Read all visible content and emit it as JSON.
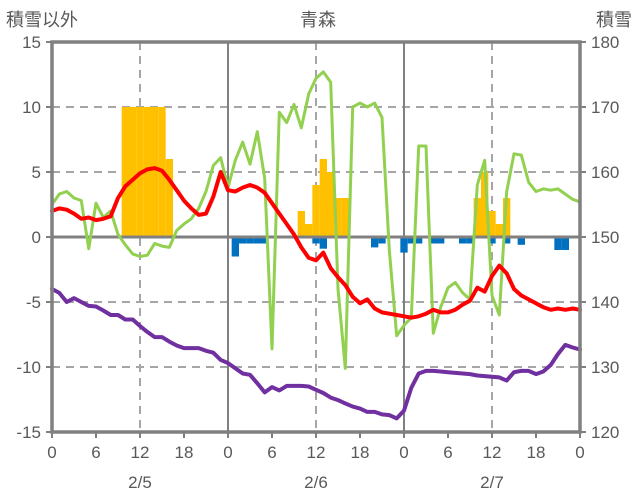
{
  "page": {
    "title_left": "積雪以外",
    "title_center": "青森",
    "title_right": "積雪"
  },
  "chart_data": {
    "type": "combo-bar-line",
    "x_unit": "hour",
    "x_range": [
      0,
      72
    ],
    "x_ticks": {
      "hours": [
        0,
        6,
        12,
        18,
        24,
        30,
        36,
        42,
        48,
        54,
        60,
        66,
        72
      ],
      "labels": [
        "0",
        "6",
        "12",
        "18",
        "0",
        "6",
        "12",
        "18",
        "0",
        "6",
        "12",
        "18",
        "0"
      ]
    },
    "date_labels": [
      {
        "hour": 12,
        "label": "2/5"
      },
      {
        "hour": 36,
        "label": "2/6"
      },
      {
        "hour": 60,
        "label": "2/7"
      }
    ],
    "left_axis": {
      "title": "積雪以外",
      "min": -15,
      "max": 15,
      "ticks": [
        15,
        10,
        5,
        0,
        -5,
        -10,
        -15
      ],
      "tick_labels": [
        "15",
        "10",
        "5",
        "0",
        "-5",
        "-10",
        "-15"
      ]
    },
    "right_axis": {
      "title": "積雪",
      "min": 120,
      "max": 180,
      "ticks": [
        180,
        170,
        160,
        150,
        140,
        130,
        120
      ],
      "tick_labels": [
        "180",
        "170",
        "160",
        "150",
        "140",
        "130",
        "120"
      ]
    },
    "gridlines": {
      "dashed_left_values": [
        10,
        5,
        -5,
        -10
      ],
      "zero_line_value": 0,
      "dashed_vertical_hours": [
        12,
        36,
        60
      ],
      "solid_vertical_hours": [
        24,
        48
      ]
    },
    "colors": {
      "grid_dashed": "#A6A6A6",
      "frame": "#808080",
      "text": "#595959",
      "orange_bar": "#FFC000",
      "blue_bar": "#0070C0",
      "red_line": "#FF0000",
      "green_line": "#92D050",
      "purple_line": "#7030A0"
    },
    "series": [
      {
        "name": "orange_bars",
        "type": "bar",
        "axis": "left",
        "color": "#FFC000",
        "points": [
          [
            10,
            10
          ],
          [
            11,
            10
          ],
          [
            12,
            10
          ],
          [
            13,
            10
          ],
          [
            14,
            10
          ],
          [
            15,
            10
          ],
          [
            16,
            6
          ],
          [
            34,
            2
          ],
          [
            35,
            1
          ],
          [
            36,
            4
          ],
          [
            37,
            6
          ],
          [
            38,
            5
          ],
          [
            39,
            3
          ],
          [
            40,
            3
          ],
          [
            58,
            3
          ],
          [
            59,
            5
          ],
          [
            60,
            2
          ],
          [
            61,
            1
          ],
          [
            62,
            3
          ]
        ]
      },
      {
        "name": "blue_bars",
        "type": "bar",
        "axis": "left",
        "color": "#0070C0",
        "points": [
          [
            25,
            -1.5
          ],
          [
            26,
            -0.5
          ],
          [
            27,
            -0.5
          ],
          [
            28,
            -0.5
          ],
          [
            29,
            -0.5
          ],
          [
            36,
            -0.5
          ],
          [
            37,
            -0.9
          ],
          [
            44,
            -0.8
          ],
          [
            45,
            -0.5
          ],
          [
            48,
            -1.2
          ],
          [
            49,
            -0.5
          ],
          [
            50,
            -0.5
          ],
          [
            52,
            -0.5
          ],
          [
            53,
            -0.5
          ],
          [
            56,
            -0.5
          ],
          [
            57,
            -0.5
          ],
          [
            60,
            -0.5
          ],
          [
            62,
            -0.5
          ],
          [
            64,
            -0.6
          ],
          [
            69,
            -1.0
          ],
          [
            70,
            -1.0
          ]
        ]
      },
      {
        "name": "green_line",
        "type": "line",
        "axis": "left",
        "color": "#92D050",
        "width": 3,
        "values": [
          2.5,
          3.3,
          3.5,
          3.0,
          2.8,
          -0.9,
          2.6,
          1.5,
          2.0,
          0.2,
          -0.6,
          -1.3,
          -1.5,
          -1.4,
          -0.5,
          -0.7,
          -0.8,
          0.5,
          1.0,
          1.4,
          2.2,
          3.5,
          5.5,
          6.1,
          3.8,
          5.9,
          7.3,
          5.6,
          8.1,
          4.5,
          -8.6,
          9.6,
          8.8,
          10.2,
          8.4,
          11.0,
          12.2,
          12.7,
          11.9,
          -4.0,
          -10.1,
          10.0,
          10.3,
          10.0,
          10.3,
          9.2,
          -1.0,
          -7.6,
          -6.8,
          -6.2,
          7.0,
          7.0,
          -7.4,
          -5.4,
          -3.9,
          -3.5,
          -4.3,
          -4.8,
          4.0,
          5.9,
          -4.5,
          -6.0,
          3.5,
          6.4,
          6.3,
          4.2,
          3.5,
          3.7,
          3.6,
          3.7,
          3.3,
          2.9,
          2.7
        ]
      },
      {
        "name": "red_line",
        "type": "line",
        "axis": "left",
        "color": "#FF0000",
        "width": 4,
        "values": [
          2.0,
          2.2,
          2.1,
          1.8,
          1.4,
          1.5,
          1.3,
          1.4,
          1.6,
          3.0,
          3.9,
          4.4,
          4.9,
          5.2,
          5.3,
          5.1,
          4.4,
          3.6,
          2.8,
          2.2,
          1.7,
          1.8,
          3.1,
          5.0,
          3.6,
          3.5,
          3.8,
          4.0,
          3.8,
          3.4,
          2.6,
          1.8,
          1.0,
          0.2,
          -0.8,
          -1.6,
          -1.8,
          -1.2,
          -2.4,
          -3.1,
          -3.7,
          -4.6,
          -5.1,
          -4.8,
          -5.5,
          -5.8,
          -5.9,
          -6.0,
          -6.1,
          -6.2,
          -6.1,
          -5.9,
          -5.6,
          -5.8,
          -5.8,
          -5.6,
          -5.2,
          -4.9,
          -3.9,
          -4.2,
          -3.0,
          -2.2,
          -2.8,
          -4.0,
          -4.5,
          -4.8,
          -5.1,
          -5.4,
          -5.6,
          -5.5,
          -5.6,
          -5.5,
          -5.6
        ]
      },
      {
        "name": "purple_line",
        "type": "line",
        "axis": "right",
        "color": "#7030A0",
        "width": 4,
        "values": [
          142.0,
          141.4,
          140.0,
          140.6,
          140.0,
          139.4,
          139.3,
          138.7,
          138.0,
          138.0,
          137.3,
          137.3,
          136.3,
          135.4,
          134.6,
          134.6,
          133.9,
          133.3,
          132.9,
          132.9,
          132.9,
          132.5,
          132.2,
          131.1,
          130.6,
          129.8,
          129.0,
          128.8,
          127.5,
          126.1,
          126.9,
          126.4,
          127.1,
          127.1,
          127.1,
          127.0,
          126.5,
          126.0,
          125.3,
          124.9,
          124.4,
          123.9,
          123.6,
          123.1,
          123.1,
          122.7,
          122.6,
          122.1,
          123.3,
          126.8,
          129.0,
          129.4,
          129.4,
          129.3,
          129.2,
          129.1,
          129.0,
          128.9,
          128.7,
          128.6,
          128.5,
          128.4,
          127.9,
          129.2,
          129.4,
          129.4,
          128.9,
          129.3,
          130.3,
          132.0,
          133.4,
          133.0,
          132.7
        ]
      }
    ]
  }
}
